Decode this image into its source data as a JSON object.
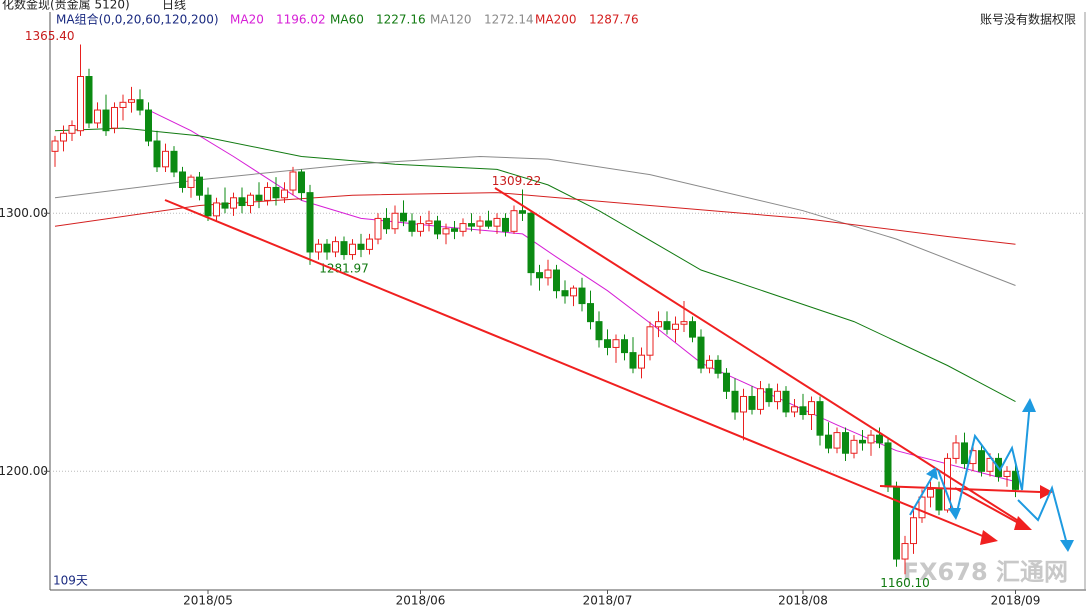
{
  "chart_data": {
    "type": "candlestick",
    "title": "化数金现(贵金属 5120)",
    "period": "日线",
    "indicator": "MA组合(0,0,20,60,120,200)",
    "notice": "账号没有数据权限",
    "count_label": "109天",
    "watermark": "FX678 汇通网",
    "up_color": "#e8201f",
    "down_color": "#0b8a12",
    "grid": true,
    "ylim": [
      1154,
      1378
    ],
    "yticks": [
      {
        "value": 1200,
        "label": "1200.00"
      },
      {
        "value": 1300,
        "label": "1300.00"
      }
    ],
    "categories": [
      null,
      null,
      null,
      null,
      null,
      null,
      null,
      null,
      null,
      null,
      null,
      null,
      null,
      null,
      null,
      null,
      null,
      null,
      "2018/05",
      null,
      null,
      null,
      null,
      null,
      null,
      null,
      null,
      null,
      null,
      null,
      null,
      null,
      null,
      null,
      null,
      null,
      null,
      null,
      null,
      null,
      null,
      null,
      null,
      "2018/06",
      null,
      null,
      null,
      null,
      null,
      null,
      null,
      null,
      null,
      null,
      null,
      null,
      null,
      null,
      null,
      null,
      null,
      null,
      null,
      null,
      null,
      "2018/07",
      null,
      null,
      null,
      null,
      null,
      null,
      null,
      null,
      null,
      null,
      null,
      null,
      null,
      null,
      null,
      null,
      null,
      null,
      null,
      null,
      null,
      null,
      "2018/08",
      null,
      null,
      null,
      null,
      null,
      null,
      null,
      null,
      null,
      null,
      null,
      null,
      null,
      null,
      null,
      null,
      null,
      null,
      null,
      null,
      null,
      null,
      null,
      null,
      "2018/09"
    ],
    "open": [
      1324,
      1328,
      1331,
      1332,
      1353,
      1335,
      1340,
      1333,
      1341,
      1343,
      1344,
      1340,
      1328,
      1318,
      1324,
      1316,
      1310,
      1314,
      1307,
      1299,
      1304,
      1302,
      1306,
      1303,
      1307,
      1305,
      1310,
      1306,
      1309,
      1316,
      1308,
      1285,
      1288,
      1285,
      1289,
      1284,
      1288,
      1286,
      1290,
      1298,
      1294,
      1300,
      1297,
      1293,
      1296,
      1297,
      1292,
      1294,
      1293,
      1296,
      1295,
      1297,
      1295,
      1298,
      1293,
      1301,
      1300,
      1277,
      1275,
      1278,
      1270,
      1268,
      1271,
      1265,
      1258,
      1251,
      1248,
      1251,
      1246,
      1240,
      1245,
      1256,
      1258,
      1255,
      1257,
      1258,
      1252,
      1240,
      1243,
      1238,
      1231,
      1223,
      1229,
      1224,
      1232,
      1227,
      1231,
      1223,
      1225,
      1222,
      1227,
      1214,
      1209,
      1215,
      1207,
      1212,
      1211,
      1214,
      1211,
      1194,
      1166,
      1172,
      1182,
      1190,
      1193,
      1185,
      1205,
      1211,
      1203,
      1208,
      1200,
      1205,
      1198,
      1200
    ],
    "high": [
      1330,
      1334,
      1336,
      1365.4,
      1356,
      1343,
      1346,
      1343,
      1346,
      1349,
      1348,
      1343,
      1332,
      1327,
      1326,
      1318,
      1315,
      1316,
      1310,
      1306,
      1310,
      1308,
      1310,
      1308,
      1312,
      1312,
      1314,
      1312,
      1318,
      1317,
      1311,
      1290,
      1290,
      1291,
      1291,
      1290,
      1292,
      1292,
      1300,
      1302,
      1303,
      1305,
      1300,
      1299,
      1301,
      1299,
      1296,
      1297,
      1298,
      1300,
      1299,
      1301,
      1300,
      1300,
      1303,
      1309.22,
      1301,
      1280,
      1282,
      1280,
      1274,
      1272,
      1275,
      1270,
      1262,
      1255,
      1253,
      1253,
      1252,
      1248,
      1258,
      1262,
      1262,
      1260,
      1266,
      1260,
      1255,
      1245,
      1245,
      1240,
      1236,
      1232,
      1233,
      1235,
      1234,
      1234,
      1233,
      1228,
      1230,
      1229,
      1229,
      1219,
      1217,
      1217,
      1214,
      1216,
      1216,
      1217,
      1213,
      1196,
      1175,
      1185,
      1193,
      1196,
      1196,
      1207,
      1214,
      1215,
      1210,
      1210,
      1207,
      1207,
      1202,
      1203
    ],
    "low": [
      1318,
      1324,
      1328,
      1330,
      1333,
      1333,
      1330,
      1331,
      1336,
      1339,
      1338,
      1326,
      1316,
      1316,
      1314,
      1308,
      1306,
      1305,
      1297,
      1297,
      1300,
      1299,
      1300,
      1300,
      1302,
      1303,
      1303,
      1304,
      1307,
      1305,
      1280,
      1282,
      1282,
      1283,
      1281.97,
      1282,
      1283,
      1284,
      1288,
      1292,
      1292,
      1295,
      1291,
      1291,
      1293,
      1290,
      1288,
      1290,
      1291,
      1293,
      1292,
      1294,
      1292,
      1291,
      1292,
      1297,
      1272,
      1270,
      1272,
      1267,
      1265,
      1264,
      1262,
      1255,
      1248,
      1245,
      1242,
      1243,
      1238,
      1236,
      1243,
      1252,
      1253,
      1250,
      1254,
      1250,
      1238,
      1238,
      1236,
      1228,
      1220,
      1212,
      1222,
      1222,
      1225,
      1224,
      1221,
      1221,
      1220,
      1216,
      1210,
      1207,
      1207,
      1204,
      1205,
      1208,
      1206,
      1209,
      1192,
      1163,
      1160.1,
      1168,
      1180,
      1186,
      1183,
      1184,
      1203,
      1201,
      1200,
      1198,
      1198,
      1196,
      1194,
      1190
    ],
    "close": [
      1328,
      1331,
      1334,
      1353,
      1335,
      1340,
      1332,
      1341,
      1343,
      1344,
      1340,
      1328,
      1318,
      1324,
      1316,
      1310,
      1314,
      1307,
      1299,
      1304,
      1302,
      1306,
      1303,
      1307,
      1305,
      1310,
      1306,
      1309,
      1316,
      1308,
      1285,
      1288,
      1285,
      1289,
      1284,
      1288,
      1286,
      1290,
      1298,
      1294,
      1300,
      1297,
      1293,
      1296,
      1297,
      1292,
      1294,
      1293,
      1296,
      1295,
      1297,
      1295,
      1298,
      1293,
      1301,
      1300,
      1277,
      1275,
      1278,
      1270,
      1268,
      1271,
      1265,
      1258,
      1251,
      1248,
      1251,
      1246,
      1240,
      1245,
      1256,
      1258,
      1255,
      1257,
      1258,
      1252,
      1240,
      1243,
      1238,
      1231,
      1223,
      1229,
      1224,
      1232,
      1227,
      1231,
      1223,
      1225,
      1222,
      1227,
      1214,
      1209,
      1215,
      1207,
      1212,
      1211,
      1214,
      1211,
      1194,
      1166,
      1172,
      1182,
      1190,
      1193,
      1185,
      1205,
      1211,
      1203,
      1208,
      1200,
      1205,
      1198,
      1200,
      1193
    ],
    "lines": [
      {
        "name": "MA20",
        "last": 1196.02,
        "color": "#d61ed6",
        "x": [
          11,
          16,
          21,
          29,
          36,
          45,
          55,
          59,
          65,
          71,
          76,
          84,
          92,
          99,
          113
        ],
        "values": [
          1340,
          1332,
          1322,
          1305,
          1298,
          1295,
          1292,
          1283,
          1270,
          1255,
          1242,
          1230,
          1218,
          1208,
          1196
        ]
      },
      {
        "name": "MA60",
        "last": 1227.16,
        "color": "#117a11",
        "x": [
          0,
          8,
          17,
          29,
          40,
          52,
          58,
          64,
          76,
          94,
          105,
          113
        ],
        "values": [
          1332,
          1333,
          1330,
          1322,
          1319,
          1317,
          1311,
          1301,
          1278,
          1258,
          1241,
          1227
        ]
      },
      {
        "name": "MA120",
        "last": 1272.14,
        "color": "#8a8a8a",
        "x": [
          0,
          17,
          35,
          50,
          58,
          70,
          88,
          99,
          113
        ],
        "values": [
          1306,
          1313,
          1319,
          1322,
          1321,
          1315,
          1301,
          1290,
          1272
        ]
      },
      {
        "name": "MA200",
        "last": 1287.76,
        "color": "#d42020",
        "x": [
          0,
          17,
          35,
          52,
          70,
          88,
          105,
          113
        ],
        "values": [
          1295,
          1303,
          1307,
          1308,
          1303,
          1298,
          1291,
          1288
        ]
      }
    ],
    "annotations": [
      {
        "label": "1365.40",
        "value": 1365.4,
        "color": "#c81c1c"
      },
      {
        "label": "1309.22",
        "value": 1309.22,
        "color": "#c81c1c"
      },
      {
        "label": "1281.97",
        "value": 1281.97,
        "color": "#117a11"
      },
      {
        "label": "1160.10",
        "value": 1160.1,
        "color": "#117a11"
      }
    ]
  }
}
